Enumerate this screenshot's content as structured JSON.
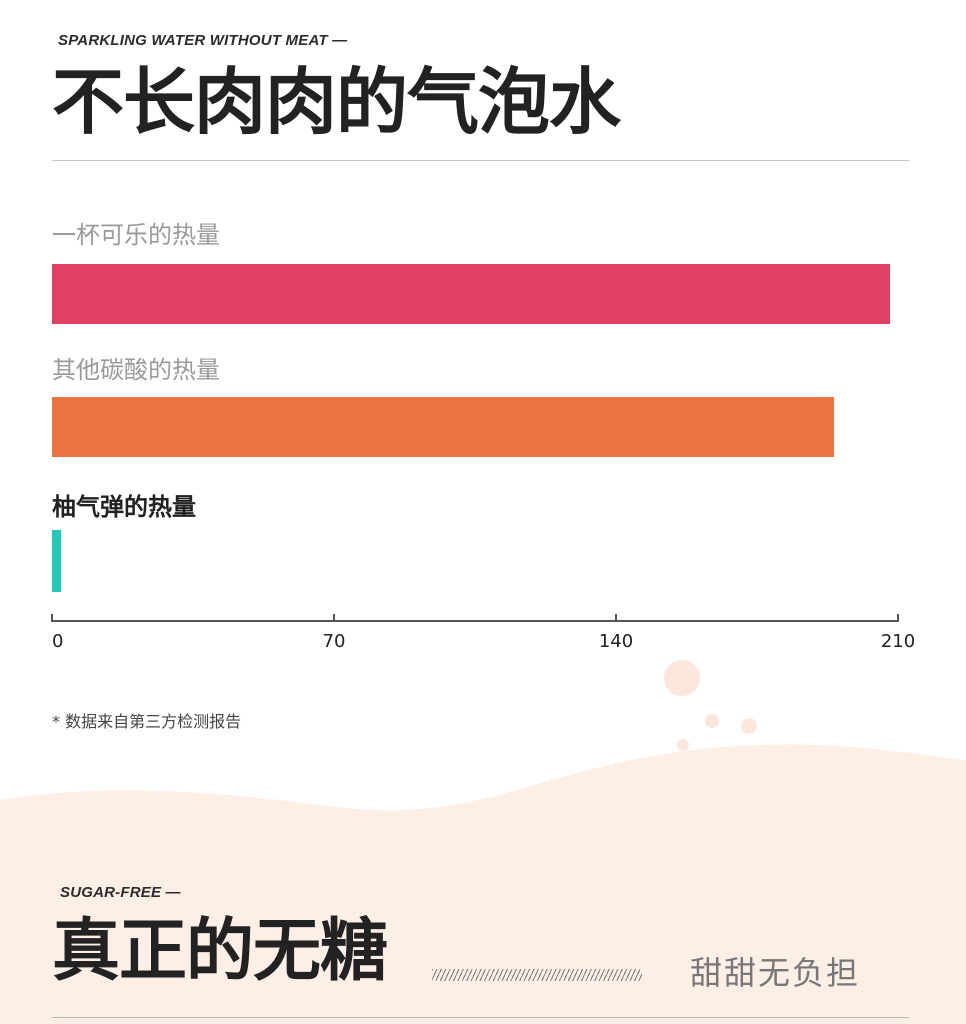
{
  "section1": {
    "eyebrow": "SPARKLING WATER WITHOUT MEAT —",
    "title": "不长肉肉的气泡水",
    "footnote": "* 数据来自第三方检测报告"
  },
  "section2": {
    "eyebrow": "SUGAR-FREE —",
    "title": "真正的无糖",
    "tagline": "甜甜无负担"
  },
  "chart_data": {
    "type": "bar",
    "orientation": "horizontal",
    "categories": [
      "一杯可乐的热量",
      "其他碳酸的热量",
      "柚气弹的热量"
    ],
    "values": [
      208,
      194,
      2
    ],
    "colors": [
      "#e23f65",
      "#ec7341",
      "#22c8b8"
    ],
    "highlight_index": 2,
    "xlim": [
      0,
      210
    ],
    "xticks": [
      "0",
      "70",
      "140",
      "210"
    ],
    "grid": false
  }
}
